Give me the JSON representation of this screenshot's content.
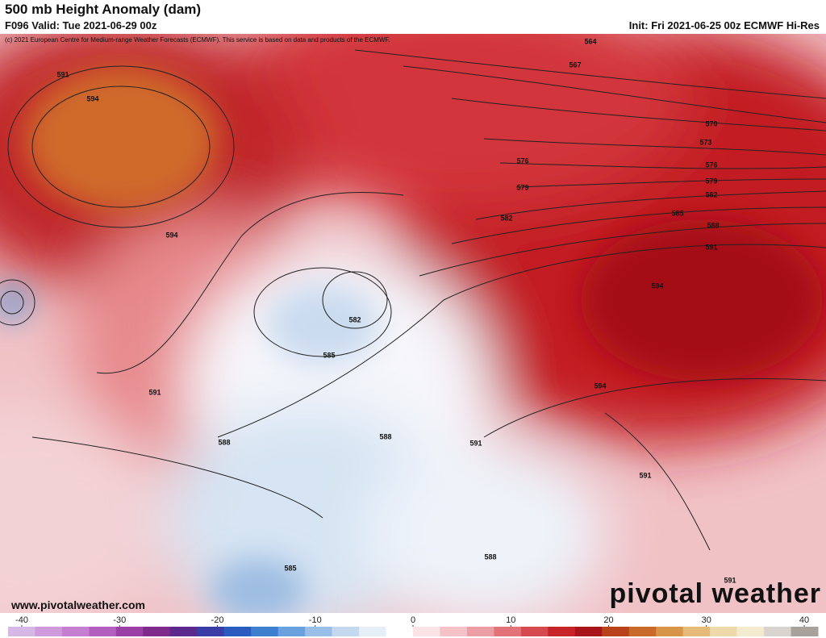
{
  "header": {
    "title": "500 mb Height Anomaly (dam)",
    "valid": "F096 Valid: Tue 2021-06-29 00z",
    "init": "Init: Fri 2021-06-25 00z ECMWF Hi-Res"
  },
  "map": {
    "copyright": "(c) 2021 European Centre for Medium-range Weather Forecasts (ECMWF). This service is based on data and products of the ECMWF.",
    "contour_labels": [
      591,
      594,
      594,
      564,
      567,
      570,
      573,
      576,
      576,
      579,
      579,
      582,
      582,
      585,
      588,
      591,
      594,
      582,
      585,
      591,
      588,
      588,
      591,
      594,
      591,
      588,
      585,
      591
    ],
    "website": "www.pivotalweather.com",
    "logo": "pivotal weather"
  },
  "colorbar": {
    "ticks": [
      -40,
      -30,
      -20,
      -10,
      0,
      10,
      20,
      30,
      40
    ],
    "colors": [
      "#d7b7e6",
      "#cf9bdc",
      "#c47fd0",
      "#b35fbf",
      "#9c3fa6",
      "#7e2b8c",
      "#5b2a8c",
      "#3b3da6",
      "#2a5cc0",
      "#3f7fd0",
      "#6aa0de",
      "#99bfe8",
      "#c4d9f0",
      "#e6eef8",
      "#ffffff",
      "#fbe3e6",
      "#f4c2c7",
      "#ec9ea5",
      "#e27479",
      "#d64a4f",
      "#c82328",
      "#a8141a",
      "#b8421a",
      "#c86a2a",
      "#d89448",
      "#e6bb7a",
      "#efd8aa",
      "#f3ead0",
      "#d9d4cf",
      "#a9a29c"
    ]
  }
}
